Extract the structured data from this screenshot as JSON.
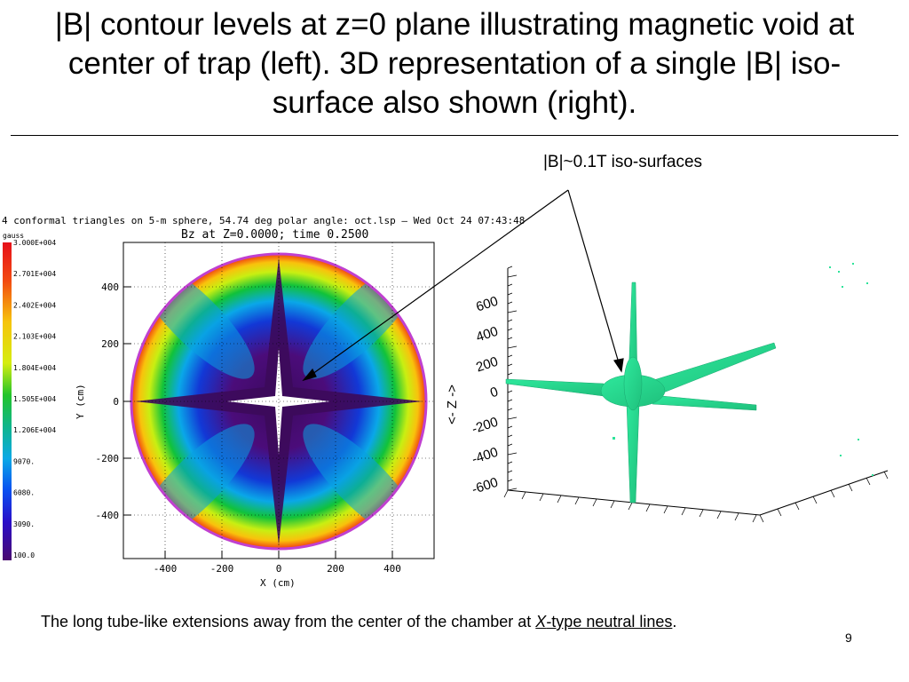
{
  "slide": {
    "title": "|B| contour levels at z=0 plane illustrating magnetic void at center of trap (left).  3D representation of a single |B| iso-surface also shown (right).",
    "annotation": "|B|~0.1T iso-surfaces",
    "caption_prefix": "The long tube-like extensions away from the center of the chamber at ",
    "caption_link_italic": "X",
    "caption_link_rest": "-type neutral lines",
    "caption_suffix": ".",
    "page_number": "9"
  },
  "left_plot": {
    "header": "4 conformal triangles on 5-m sphere, 54.74 deg polar angle: oct.lsp – Wed Oct 24 07:43:48",
    "subtitle": "Bz at Z=0.0000; time 0.2500",
    "colorbar_unit": "gauss",
    "colorbar_labels": [
      "3.000E+004",
      "2.701E+004",
      "2.402E+004",
      "2.103E+004",
      "1.804E+004",
      "1.505E+004",
      "1.206E+004",
      "9070.",
      "6080.",
      "3090.",
      "100.0"
    ],
    "x_ticks": [
      "-400",
      "-200",
      "0",
      "200",
      "400"
    ],
    "y_ticks": [
      "400",
      "200",
      "0",
      "-200",
      "-400"
    ],
    "xlabel": "X (cm)",
    "ylabel": "Y (cm)"
  },
  "right_plot": {
    "z_ticks": [
      "600",
      "400",
      "200",
      "0",
      "-200",
      "-400",
      "-600"
    ],
    "z_label": "<- Z ->",
    "surface_color": "#2de39a"
  }
}
